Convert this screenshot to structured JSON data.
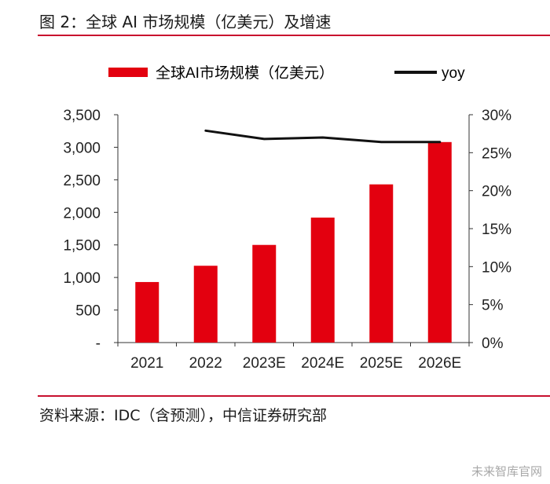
{
  "figure": {
    "title": "图 2：全球 AI 市场规模（亿美元）及增速",
    "source": "资料来源：IDC（含预测），中信证券研究部",
    "watermark": "未来智库官网"
  },
  "colors": {
    "bar": "#e3000f",
    "line": "#111111",
    "rule": "#c8102e",
    "axis": "#333333"
  },
  "chart_data": {
    "type": "bar+line",
    "categories": [
      "2021",
      "2022",
      "2023E",
      "2024E",
      "2025E",
      "2026E"
    ],
    "series": [
      {
        "name": "全球AI市场规模（亿美元）",
        "type": "bar",
        "axis": "left",
        "values": [
          930,
          1180,
          1500,
          1920,
          2430,
          3080
        ]
      },
      {
        "name": "yoy",
        "type": "line",
        "axis": "right",
        "values": [
          null,
          0.279,
          0.268,
          0.27,
          0.264,
          0.264
        ]
      }
    ],
    "y_left": {
      "ticks": [
        0,
        500,
        1000,
        1500,
        2000,
        2500,
        3000,
        3500
      ],
      "tick_labels": [
        "-",
        "500",
        "1,000",
        "1,500",
        "2,000",
        "2,500",
        "3,000",
        "3,500"
      ],
      "range": [
        0,
        3500
      ]
    },
    "y_right": {
      "ticks": [
        0,
        0.05,
        0.1,
        0.15,
        0.2,
        0.25,
        0.3
      ],
      "tick_labels": [
        "0%",
        "5%",
        "10%",
        "15%",
        "20%",
        "25%",
        "30%"
      ],
      "range": [
        0,
        0.3
      ]
    },
    "grid": false,
    "legend_position": "top"
  }
}
